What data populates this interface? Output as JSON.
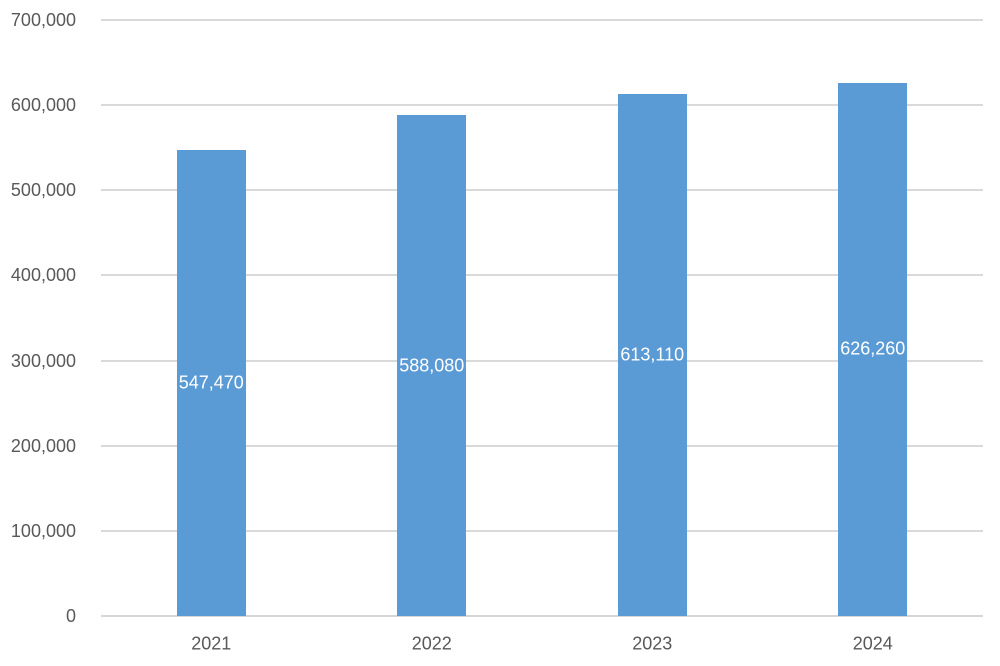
{
  "chart_data": {
    "type": "bar",
    "title": "",
    "xlabel": "",
    "ylabel": "",
    "categories": [
      "2021",
      "2022",
      "2023",
      "2024"
    ],
    "values": [
      547470,
      588080,
      613110,
      626260
    ],
    "data_labels": [
      "547,470",
      "588,080",
      "613,110",
      "626,260"
    ],
    "series_name": "",
    "legend_position": "none",
    "grid": true,
    "ylim": [
      0,
      700000
    ],
    "y_tick_interval": 100000,
    "y_ticks": [
      {
        "value": 0,
        "label": "0"
      },
      {
        "value": 100000,
        "label": "100,000"
      },
      {
        "value": 200000,
        "label": "200,000"
      },
      {
        "value": 300000,
        "label": "300,000"
      },
      {
        "value": 400000,
        "label": "400,000"
      },
      {
        "value": 500000,
        "label": "500,000"
      },
      {
        "value": 600000,
        "label": "600,000"
      },
      {
        "value": 700000,
        "label": "700,000"
      }
    ],
    "colors": {
      "bar_fill": "#5B9BD5",
      "gridline": "#D9D9D9",
      "axis_line": "#D6D6D6",
      "axis_text": "#595959",
      "data_label_text": "#FFFFFF",
      "background": "#FFFFFF"
    }
  }
}
